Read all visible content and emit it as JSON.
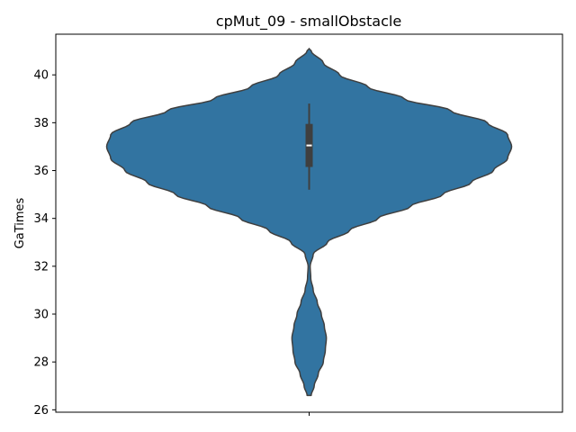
{
  "chart_data": {
    "type": "violin",
    "title": "cpMut_09 - smallObstacle",
    "xlabel": "",
    "ylabel": "GaTimes",
    "ylim": [
      25.9,
      41.7
    ],
    "yticks": [
      26,
      28,
      30,
      32,
      34,
      36,
      38,
      40
    ],
    "grid": false,
    "legend": "none",
    "series": [
      {
        "color": "#3274a1",
        "range": [
          26.6,
          41.1
        ],
        "quartiles": [
          36.15,
          37.05,
          37.95
        ],
        "whiskers": [
          35.2,
          38.8
        ],
        "density_profile": [
          [
            26.6,
            0.01
          ],
          [
            27.0,
            0.025
          ],
          [
            27.5,
            0.045
          ],
          [
            28.0,
            0.07
          ],
          [
            28.5,
            0.08
          ],
          [
            29.0,
            0.085
          ],
          [
            29.5,
            0.075
          ],
          [
            30.0,
            0.06
          ],
          [
            30.5,
            0.04
          ],
          [
            31.0,
            0.02
          ],
          [
            31.5,
            0.008
          ],
          [
            32.0,
            0.005
          ],
          [
            32.5,
            0.02
          ],
          [
            33.0,
            0.09
          ],
          [
            33.5,
            0.2
          ],
          [
            34.0,
            0.34
          ],
          [
            34.5,
            0.5
          ],
          [
            35.0,
            0.66
          ],
          [
            35.5,
            0.8
          ],
          [
            36.0,
            0.91
          ],
          [
            36.5,
            0.98
          ],
          [
            37.0,
            1.0
          ],
          [
            37.5,
            0.98
          ],
          [
            38.0,
            0.88
          ],
          [
            38.5,
            0.7
          ],
          [
            39.0,
            0.47
          ],
          [
            39.5,
            0.29
          ],
          [
            40.0,
            0.15
          ],
          [
            40.5,
            0.07
          ],
          [
            41.0,
            0.01
          ],
          [
            41.1,
            0.0
          ]
        ]
      }
    ]
  }
}
